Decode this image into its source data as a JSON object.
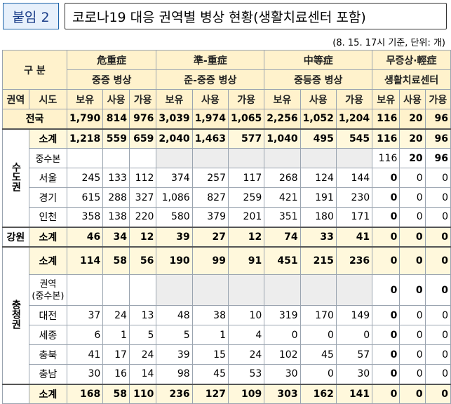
{
  "title_tag": "붙임 2",
  "title": "코로나19 대응 권역별 병상 현황(생활치료센터 포함)",
  "note": "(8. 15. 17시 기준, 단위: 개)",
  "header": {
    "gubun": "구 분",
    "group1": "危重症",
    "group1_sub": "중증 병상",
    "group2": "準-重症",
    "group2_sub": "준-중증 병상",
    "group3": "中等症",
    "group3_sub": "중등증 병상",
    "group4": "무증상·輕症",
    "group4_sub": "생활치료센터",
    "col_region": "권역",
    "col_sido": "시도",
    "col_have": "보유",
    "col_use": "사용",
    "col_avail": "가용"
  },
  "national": {
    "label": "전국",
    "values": [
      "1,790",
      "814",
      "976",
      "3,039",
      "1,974",
      "1,065",
      "2,256",
      "1,052",
      "1,204",
      "116",
      "20",
      "96"
    ]
  },
  "capital": {
    "region": "수도권",
    "subtotal": {
      "label": "소계",
      "values": [
        "1,218",
        "559",
        "659",
        "2,040",
        "1,463",
        "577",
        "1,040",
        "495",
        "545",
        "116",
        "20",
        "96"
      ]
    },
    "joongsu": {
      "label": "중수본",
      "values": [
        "",
        "",
        "",
        "",
        "",
        "",
        "",
        "",
        "",
        "116",
        "20",
        "96"
      ]
    },
    "seoul": {
      "label": "서울",
      "values": [
        "245",
        "133",
        "112",
        "374",
        "257",
        "117",
        "268",
        "124",
        "144",
        "0",
        "0",
        "0"
      ]
    },
    "gyeonggi": {
      "label": "경기",
      "values": [
        "615",
        "288",
        "327",
        "1,086",
        "827",
        "259",
        "421",
        "191",
        "230",
        "0",
        "0",
        "0"
      ]
    },
    "incheon": {
      "label": "인천",
      "values": [
        "358",
        "138",
        "220",
        "580",
        "379",
        "201",
        "351",
        "180",
        "171",
        "0",
        "0",
        "0"
      ]
    }
  },
  "gangwon": {
    "region": "강원",
    "subtotal": {
      "label": "소계",
      "values": [
        "46",
        "34",
        "12",
        "39",
        "27",
        "12",
        "74",
        "33",
        "41",
        "0",
        "0",
        "0"
      ]
    }
  },
  "chungcheong": {
    "region": "충청권",
    "subtotal": {
      "label": "소계",
      "values": [
        "114",
        "58",
        "56",
        "190",
        "99",
        "91",
        "451",
        "215",
        "236",
        "0",
        "0",
        "0"
      ]
    },
    "region_joongsu": {
      "label1": "권역",
      "label2": "(중수본)",
      "values": [
        "",
        "",
        "",
        "",
        "",
        "",
        "",
        "",
        "",
        "0",
        "0",
        "0"
      ]
    },
    "daejeon": {
      "label": "대전",
      "values": [
        "37",
        "24",
        "13",
        "48",
        "38",
        "10",
        "319",
        "170",
        "149",
        "0",
        "0",
        "0"
      ]
    },
    "sejong": {
      "label": "세종",
      "values": [
        "6",
        "1",
        "5",
        "5",
        "1",
        "4",
        "0",
        "0",
        "0",
        "0",
        "0",
        "0"
      ]
    },
    "chungbuk": {
      "label": "충북",
      "values": [
        "41",
        "17",
        "24",
        "39",
        "15",
        "24",
        "102",
        "45",
        "57",
        "0",
        "0",
        "0"
      ]
    },
    "chungnam": {
      "label": "충남",
      "values": [
        "30",
        "16",
        "14",
        "98",
        "45",
        "53",
        "30",
        "0",
        "30",
        "0",
        "0",
        "0"
      ]
    }
  },
  "next": {
    "subtotal": {
      "label": "소계",
      "values": [
        "168",
        "58",
        "110",
        "236",
        "127",
        "109",
        "303",
        "162",
        "141",
        "0",
        "0",
        "0"
      ]
    }
  }
}
